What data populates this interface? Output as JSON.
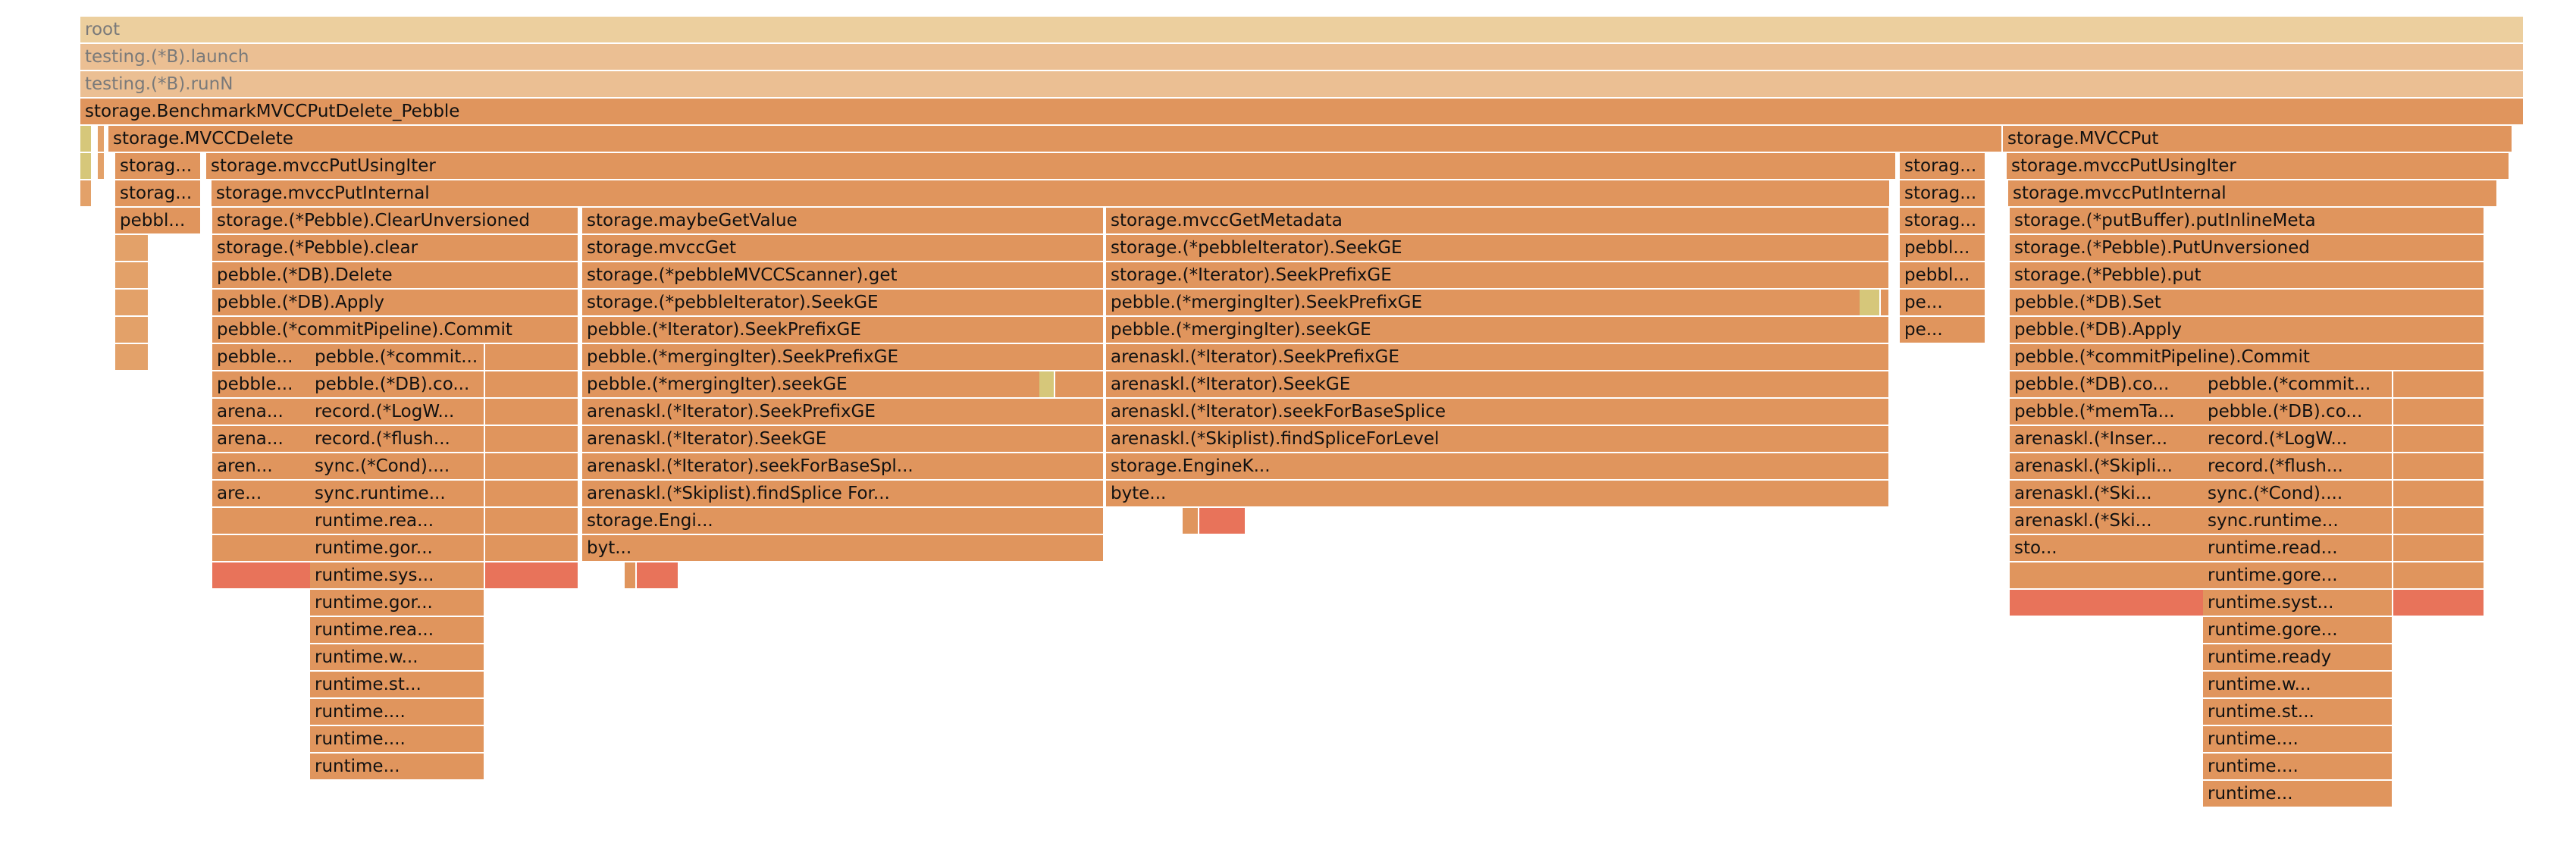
{
  "colors": {
    "root": "#eccf9e",
    "light": "#ebbf93",
    "main": "#e0955d",
    "warm": "#e3a169",
    "hot": "#e8735a",
    "cool": "#d6c77a",
    "text": "#111111"
  },
  "frames": [
    {
      "d": 0,
      "s": "root",
      "c": "root",
      "t": "root"
    },
    {
      "d": 1,
      "s": "root",
      "c": "light",
      "t": "testing.(*B).launch"
    },
    {
      "d": 2,
      "s": "root",
      "c": "light",
      "t": "testing.(*B).runN"
    },
    {
      "d": 3,
      "s": "root",
      "c": "main",
      "t": "storage.BenchmarkMVCCPutDelete_Pebble"
    },
    {
      "d": 4,
      "s": "a",
      "c": "cool",
      "t": ""
    },
    {
      "d": 4,
      "s": "b",
      "c": "warm",
      "t": ""
    },
    {
      "d": 4,
      "s": "c",
      "c": "main",
      "t": "storage.MVCCDelete"
    },
    {
      "d": 4,
      "s": "d",
      "c": "main",
      "t": "storage.MVCCPut"
    },
    {
      "d": 5,
      "s": "a",
      "c": "cool",
      "t": ""
    },
    {
      "d": 5,
      "s": "b",
      "c": "warm",
      "t": ""
    },
    {
      "d": 5,
      "s": "e",
      "c": "main",
      "t": "storag..."
    },
    {
      "d": 5,
      "s": "f",
      "c": "main",
      "t": "storage.mvccPutUsingIter"
    },
    {
      "d": 5,
      "s": "g",
      "c": "main",
      "t": "storag..."
    },
    {
      "d": 5,
      "s": "h",
      "c": "main",
      "t": "storage.mvccPutUsingIter"
    },
    {
      "d": 6,
      "s": "a",
      "c": "warm",
      "t": ""
    },
    {
      "d": 6,
      "s": "e",
      "c": "main",
      "t": "storag..."
    },
    {
      "d": 6,
      "s": "i",
      "c": "main",
      "t": "storage.mvccPutInternal"
    },
    {
      "d": 6,
      "s": "g",
      "c": "main",
      "t": "storag..."
    },
    {
      "d": 6,
      "s": "j",
      "c": "main",
      "t": "storage.mvccPutInternal"
    },
    {
      "d": 7,
      "s": "e",
      "c": "main",
      "t": "pebbl..."
    },
    {
      "d": 7,
      "s": "k",
      "c": "main",
      "t": "storage.(*Pebble).ClearUnversioned"
    },
    {
      "d": 7,
      "s": "l",
      "c": "main",
      "t": "storage.maybeGetValue"
    },
    {
      "d": 7,
      "s": "m",
      "c": "main",
      "t": "storage.mvccGetMetadata"
    },
    {
      "d": 7,
      "s": "g",
      "c": "main",
      "t": "storag..."
    },
    {
      "d": 7,
      "s": "n",
      "c": "main",
      "t": "storage.(*putBuffer).putInlineMeta"
    },
    {
      "d": 8,
      "s": "o",
      "c": "warm",
      "t": ""
    },
    {
      "d": 8,
      "s": "k",
      "c": "main",
      "t": "storage.(*Pebble).clear"
    },
    {
      "d": 8,
      "s": "l",
      "c": "main",
      "t": "storage.mvccGet"
    },
    {
      "d": 8,
      "s": "m",
      "c": "main",
      "t": "storage.(*pebbleIterator).SeekGE"
    },
    {
      "d": 8,
      "s": "g",
      "c": "main",
      "t": "pebbl..."
    },
    {
      "d": 8,
      "s": "n",
      "c": "main",
      "t": "storage.(*Pebble).PutUnversioned"
    },
    {
      "d": 9,
      "s": "o",
      "c": "warm",
      "t": ""
    },
    {
      "d": 9,
      "s": "k",
      "c": "main",
      "t": "pebble.(*DB).Delete"
    },
    {
      "d": 9,
      "s": "l",
      "c": "main",
      "t": "storage.(*pebbleMVCCScanner).get"
    },
    {
      "d": 9,
      "s": "m",
      "c": "main",
      "t": "storage.(*Iterator).SeekPrefixGE"
    },
    {
      "d": 9,
      "s": "g",
      "c": "main",
      "t": "pebbl..."
    },
    {
      "d": 9,
      "s": "n",
      "c": "main",
      "t": "storage.(*Pebble).put"
    },
    {
      "d": 10,
      "s": "o",
      "c": "warm",
      "t": ""
    },
    {
      "d": 10,
      "s": "k",
      "c": "main",
      "t": "pebble.(*DB).Apply"
    },
    {
      "d": 10,
      "s": "l",
      "c": "main",
      "t": "storage.(*pebbleIterator).SeekGE"
    },
    {
      "d": 10,
      "s": "m",
      "c": "main",
      "t": "pebble.(*mergingIter).SeekPrefixGE"
    },
    {
      "d": 10,
      "s": "p",
      "c": "cool",
      "t": ""
    },
    {
      "d": 10,
      "s": "g",
      "c": "main",
      "t": "pe..."
    },
    {
      "d": 10,
      "s": "n",
      "c": "main",
      "t": "pebble.(*DB).Set"
    },
    {
      "d": 11,
      "s": "o",
      "c": "warm",
      "t": ""
    },
    {
      "d": 11,
      "s": "k",
      "c": "main",
      "t": "pebble.(*commitPipeline).Commit"
    },
    {
      "d": 11,
      "s": "l",
      "c": "main",
      "t": "pebble.(*Iterator).SeekPrefixGE"
    },
    {
      "d": 11,
      "s": "m",
      "c": "main",
      "t": "pebble.(*mergingIter).seekGE"
    },
    {
      "d": 11,
      "s": "g",
      "c": "main",
      "t": "pe..."
    },
    {
      "d": 11,
      "s": "n",
      "c": "main",
      "t": "pebble.(*DB).Apply"
    },
    {
      "d": 12,
      "s": "o",
      "c": "warm",
      "t": ""
    },
    {
      "d": 12,
      "s": "k",
      "c": "main",
      "t": "pebble..."
    },
    {
      "d": 12,
      "s": "q",
      "c": "main",
      "t": "pebble.(*commit..."
    },
    {
      "d": 12,
      "s": "l",
      "c": "main",
      "t": "pebble.(*mergingIter).SeekPrefixGE"
    },
    {
      "d": 12,
      "s": "m",
      "c": "main",
      "t": "arenaskl.(*Iterator).SeekPrefixGE"
    },
    {
      "d": 12,
      "s": "n",
      "c": "main",
      "t": "pebble.(*commitPipeline).Commit"
    },
    {
      "d": 13,
      "s": "k",
      "c": "main",
      "t": "pebble..."
    },
    {
      "d": 13,
      "s": "q",
      "c": "main",
      "t": "pebble.(*DB).co..."
    },
    {
      "d": 13,
      "s": "l",
      "c": "main",
      "t": "pebble.(*mergingIter).seekGE"
    },
    {
      "d": 13,
      "s": "r",
      "c": "cool",
      "t": ""
    },
    {
      "d": 13,
      "s": "m",
      "c": "main",
      "t": "arenaskl.(*Iterator).SeekGE"
    },
    {
      "d": 13,
      "s": "n",
      "c": "main",
      "t": "pebble.(*DB).co..."
    },
    {
      "d": 13,
      "s": "u",
      "c": "main",
      "t": "pebble.(*commit..."
    },
    {
      "d": 14,
      "s": "k",
      "c": "main",
      "t": "arena..."
    },
    {
      "d": 14,
      "s": "q",
      "c": "main",
      "t": "record.(*LogW..."
    },
    {
      "d": 14,
      "s": "l",
      "c": "main",
      "t": "arenaskl.(*Iterator).SeekPrefixGE"
    },
    {
      "d": 14,
      "s": "m",
      "c": "main",
      "t": "arenaskl.(*Iterator).seekForBaseSplice"
    },
    {
      "d": 14,
      "s": "n",
      "c": "main",
      "t": "pebble.(*memTa..."
    },
    {
      "d": 14,
      "s": "u",
      "c": "main",
      "t": "pebble.(*DB).co..."
    },
    {
      "d": 15,
      "s": "k",
      "c": "main",
      "t": "arena..."
    },
    {
      "d": 15,
      "s": "q",
      "c": "main",
      "t": "record.(*flush..."
    },
    {
      "d": 15,
      "s": "l",
      "c": "main",
      "t": "arenaskl.(*Iterator).SeekGE"
    },
    {
      "d": 15,
      "s": "m",
      "c": "main",
      "t": "arenaskl.(*Skiplist).findSpliceForLevel"
    },
    {
      "d": 15,
      "s": "n",
      "c": "main",
      "t": "arenaskl.(*Inser..."
    },
    {
      "d": 15,
      "s": "u",
      "c": "main",
      "t": "record.(*LogW..."
    },
    {
      "d": 16,
      "s": "k",
      "c": "main",
      "t": "aren..."
    },
    {
      "d": 16,
      "s": "q",
      "c": "main",
      "t": "sync.(*Cond)...."
    },
    {
      "d": 16,
      "s": "l",
      "c": "main",
      "t": "arenaskl.(*Iterator).seekForBaseSpl..."
    },
    {
      "d": 16,
      "s": "m",
      "c": "main",
      "t": "storage.EngineK..."
    },
    {
      "d": 16,
      "s": "n",
      "c": "main",
      "t": "arenaskl.(*Skipli..."
    },
    {
      "d": 16,
      "s": "u",
      "c": "main",
      "t": "record.(*flush..."
    },
    {
      "d": 17,
      "s": "k",
      "c": "main",
      "t": "are..."
    },
    {
      "d": 17,
      "s": "q",
      "c": "main",
      "t": "sync.runtime..."
    },
    {
      "d": 17,
      "s": "l",
      "c": "main",
      "t": "arenaskl.(*Skiplist).findSplice For..."
    },
    {
      "d": 17,
      "s": "m",
      "c": "main",
      "t": "byte..."
    },
    {
      "d": 17,
      "s": "n",
      "c": "main",
      "t": "arenaskl.(*Ski..."
    },
    {
      "d": 17,
      "s": "u",
      "c": "main",
      "t": "sync.(*Cond)...."
    },
    {
      "d": 18,
      "s": "k",
      "c": "main",
      "t": ""
    },
    {
      "d": 18,
      "s": "q",
      "c": "main",
      "t": "runtime.rea..."
    },
    {
      "d": 18,
      "s": "l",
      "c": "main",
      "t": "storage.Engi..."
    },
    {
      "d": 18,
      "s": "v",
      "c": "main",
      "t": ""
    },
    {
      "d": 18,
      "s": "w",
      "c": "hot",
      "t": ""
    },
    {
      "d": 18,
      "s": "n",
      "c": "main",
      "t": "arenaskl.(*Ski..."
    },
    {
      "d": 18,
      "s": "u",
      "c": "main",
      "t": "sync.runtime..."
    },
    {
      "d": 19,
      "s": "k",
      "c": "main",
      "t": ""
    },
    {
      "d": 19,
      "s": "q",
      "c": "main",
      "t": "runtime.gor..."
    },
    {
      "d": 19,
      "s": "l",
      "c": "main",
      "t": "byt..."
    },
    {
      "d": 19,
      "s": "n",
      "c": "main",
      "t": "sto..."
    },
    {
      "d": 19,
      "s": "u",
      "c": "main",
      "t": "runtime.read..."
    },
    {
      "d": 20,
      "s": "k",
      "c": "hot",
      "t": ""
    },
    {
      "d": 20,
      "s": "q",
      "c": "main",
      "t": "runtime.sys..."
    },
    {
      "d": 20,
      "s": "x",
      "c": "main",
      "t": ""
    },
    {
      "d": 20,
      "s": "y",
      "c": "hot",
      "t": ""
    },
    {
      "d": 20,
      "s": "n",
      "c": "main",
      "t": ""
    },
    {
      "d": 20,
      "s": "u",
      "c": "main",
      "t": "runtime.gore..."
    },
    {
      "d": 21,
      "s": "q",
      "c": "main",
      "t": "runtime.gor..."
    },
    {
      "d": 21,
      "s": "n",
      "c": "hot",
      "t": ""
    },
    {
      "d": 21,
      "s": "u",
      "c": "main",
      "t": "runtime.syst..."
    },
    {
      "d": 22,
      "s": "q",
      "c": "main",
      "t": "runtime.rea..."
    },
    {
      "d": 22,
      "s": "u",
      "c": "main",
      "t": "runtime.gore..."
    },
    {
      "d": 23,
      "s": "q",
      "c": "main",
      "t": "runtime.w..."
    },
    {
      "d": 23,
      "s": "u",
      "c": "main",
      "t": "runtime.ready"
    },
    {
      "d": 24,
      "s": "q",
      "c": "main",
      "t": "runtime.st..."
    },
    {
      "d": 24,
      "s": "u",
      "c": "main",
      "t": "runtime.w..."
    },
    {
      "d": 25,
      "s": "q",
      "c": "main",
      "t": "runtime...."
    },
    {
      "d": 25,
      "s": "u",
      "c": "main",
      "t": "runtime.st..."
    },
    {
      "d": 26,
      "s": "q",
      "c": "main",
      "t": "runtime...."
    },
    {
      "d": 26,
      "s": "u",
      "c": "main",
      "t": "runtime...."
    },
    {
      "d": 27,
      "s": "q",
      "c": "main",
      "t": "runtime..."
    },
    {
      "d": 27,
      "s": "u",
      "c": "main",
      "t": "runtime...."
    },
    {
      "d": 28,
      "s": "u",
      "c": "main",
      "t": "runtime..."
    }
  ]
}
